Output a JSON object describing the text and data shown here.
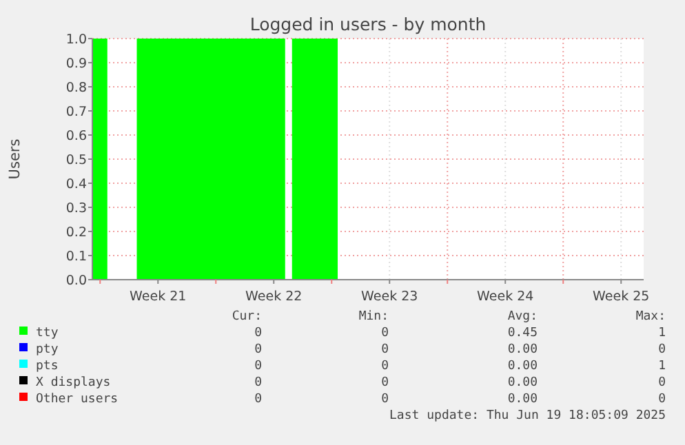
{
  "chart_data": {
    "type": "area",
    "title": "Logged in users - by month",
    "ylabel": "Users",
    "x": [
      "2025-05-18T12:45",
      "2025-05-19T10:30",
      "2025-05-19T10:30",
      "2025-05-21T05:15",
      "2025-05-21T05:15",
      "2025-05-30T04:30",
      "2025-05-30T04:30",
      "2025-05-30T14:30",
      "2025-05-30T14:30",
      "2025-06-02T08:45",
      "2025-06-02T08:45",
      "2025-06-20T20:45"
    ],
    "xlim": [
      "2025-05-18T12:45",
      "2025-06-20T20:45"
    ],
    "xticks": [
      {
        "value": "2025-05-19",
        "label": null
      },
      {
        "value": "2025-05-22T12:00",
        "label": "Week 21"
      },
      {
        "value": "2025-05-26",
        "label": null
      },
      {
        "value": "2025-05-29T12:00",
        "label": "Week 22"
      },
      {
        "value": "2025-06-02",
        "label": null
      },
      {
        "value": "2025-06-05T12:00",
        "label": "Week 23"
      },
      {
        "value": "2025-06-09",
        "label": null
      },
      {
        "value": "2025-06-12T12:00",
        "label": "Week 24"
      },
      {
        "value": "2025-06-16",
        "label": null
      },
      {
        "value": "2025-06-19T12:00",
        "label": "Week 25"
      }
    ],
    "ylim": [
      0,
      1
    ],
    "yticks": [
      {
        "value": 0,
        "label": "0.0"
      },
      {
        "value": 0.1,
        "label": "0.1"
      },
      {
        "value": 0.2,
        "label": "0.2"
      },
      {
        "value": 0.3,
        "label": "0.3"
      },
      {
        "value": 0.4,
        "label": "0.4"
      },
      {
        "value": 0.5,
        "label": "0.5"
      },
      {
        "value": 0.6,
        "label": "0.6"
      },
      {
        "value": 0.7,
        "label": "0.7"
      },
      {
        "value": 0.8,
        "label": "0.8"
      },
      {
        "value": 0.9,
        "label": "0.9"
      },
      {
        "value": 1,
        "label": "1.0"
      }
    ],
    "grid": true,
    "legend": "bottom",
    "series": [
      {
        "name": "tty",
        "color": "#00ff00",
        "values": [
          1,
          1,
          0,
          0,
          1,
          1,
          0,
          0,
          1,
          1,
          0,
          0
        ]
      },
      {
        "name": "pty",
        "color": "#0000ff",
        "values": [
          null,
          null,
          null,
          null,
          null,
          null,
          null,
          null,
          null,
          null,
          null,
          null
        ]
      },
      {
        "name": "pts",
        "color": "#00ffff",
        "values": [
          null,
          null,
          null,
          null,
          null,
          null,
          null,
          null,
          null,
          null,
          null,
          null
        ]
      },
      {
        "name": "X displays",
        "color": "#000000",
        "values": [
          null,
          null,
          null,
          null,
          null,
          null,
          null,
          null,
          null,
          null,
          null,
          null
        ]
      },
      {
        "name": "Other users",
        "color": "#ff0000",
        "values": [
          null,
          null,
          null,
          null,
          null,
          null,
          null,
          null,
          null,
          null,
          null,
          null
        ]
      }
    ],
    "annotations": [
      "Cur:",
      "Min:",
      "Avg:",
      "Max:",
      "0",
      "0",
      "0.45",
      "1",
      "0",
      "0",
      "0.00",
      "0",
      "0",
      "0",
      "0.00",
      "1",
      "0",
      "0",
      "0.00",
      "0",
      "0",
      "0",
      "0.00",
      "0",
      "Last update: Thu Jun 19 18:05:09 2025"
    ]
  }
}
